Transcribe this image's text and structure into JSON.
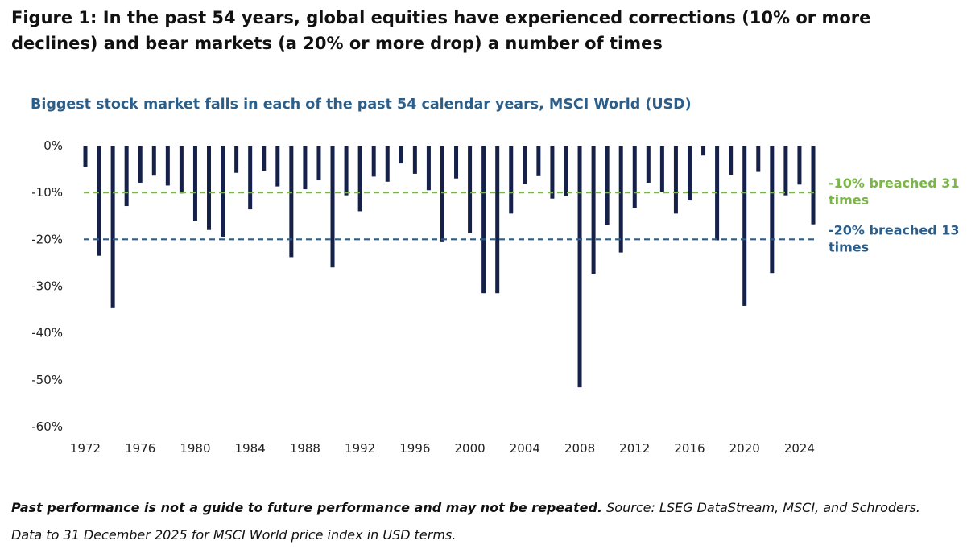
{
  "figure": {
    "title": "Figure 1: In the past 54 years, global equities have experienced corrections (10% or more declines) and bear markets (a 20% or more drop) a number of times"
  },
  "footnote": {
    "bold": "Past performance is not a guide to future performance and may not be repeated.",
    "source": " Source: LSEG DataStream, MSCI, and Schroders. Data to 31 December 2025 for MSCI World price index in USD terms."
  },
  "chart_data": {
    "type": "bar",
    "title": "Biggest stock market falls in each of the past 54 calendar years, MSCI World (USD)",
    "xlabel": "",
    "ylabel": "",
    "ylim": [
      -60,
      0
    ],
    "y_ticks": [
      0,
      -10,
      -20,
      -30,
      -40,
      -50,
      -60
    ],
    "y_tick_labels": [
      "0%",
      "-10%",
      "-20%",
      "-30%",
      "-40%",
      "-50%",
      "-60%"
    ],
    "x_tick_labels": [
      "1972",
      "1976",
      "1980",
      "1984",
      "1988",
      "1992",
      "1996",
      "2000",
      "2004",
      "2008",
      "2012",
      "2016",
      "2020",
      "2024"
    ],
    "categories": [
      1972,
      1973,
      1974,
      1975,
      1976,
      1977,
      1978,
      1979,
      1980,
      1981,
      1982,
      1983,
      1984,
      1985,
      1986,
      1987,
      1988,
      1989,
      1990,
      1991,
      1992,
      1993,
      1994,
      1995,
      1996,
      1997,
      1998,
      1999,
      2000,
      2001,
      2002,
      2003,
      2004,
      2005,
      2006,
      2007,
      2008,
      2009,
      2010,
      2011,
      2012,
      2013,
      2014,
      2015,
      2016,
      2017,
      2018,
      2019,
      2020,
      2021,
      2022,
      2023,
      2024,
      2025
    ],
    "values": [
      -4.5,
      -23.5,
      -34.7,
      -12.9,
      -7.9,
      -6.4,
      -8.5,
      -10.2,
      -16.0,
      -18.0,
      -19.6,
      -5.8,
      -13.6,
      -5.4,
      -8.7,
      -23.8,
      -9.3,
      -7.4,
      -26.0,
      -10.6,
      -14.0,
      -6.6,
      -7.7,
      -3.8,
      -6.0,
      -9.5,
      -20.6,
      -7.0,
      -18.7,
      -31.5,
      -31.5,
      -14.5,
      -8.2,
      -6.5,
      -11.3,
      -10.8,
      -51.6,
      -27.5,
      -16.9,
      -22.8,
      -13.3,
      -7.9,
      -9.8,
      -14.5,
      -11.7,
      -2.1,
      -20.2,
      -6.2,
      -34.2,
      -5.6,
      -27.2,
      -10.6,
      -8.3,
      -16.8
    ],
    "bar_color": "#16214a",
    "reference_lines": [
      {
        "value": -10,
        "label": "-10% breached 31 times",
        "label_lines": [
          "-10% breached 31",
          "times"
        ],
        "color": "#7ab648"
      },
      {
        "value": -20,
        "label": "-20% breached 13 times",
        "label_lines": [
          "-20% breached 13",
          "times"
        ],
        "color": "#2c5e8a"
      }
    ]
  }
}
